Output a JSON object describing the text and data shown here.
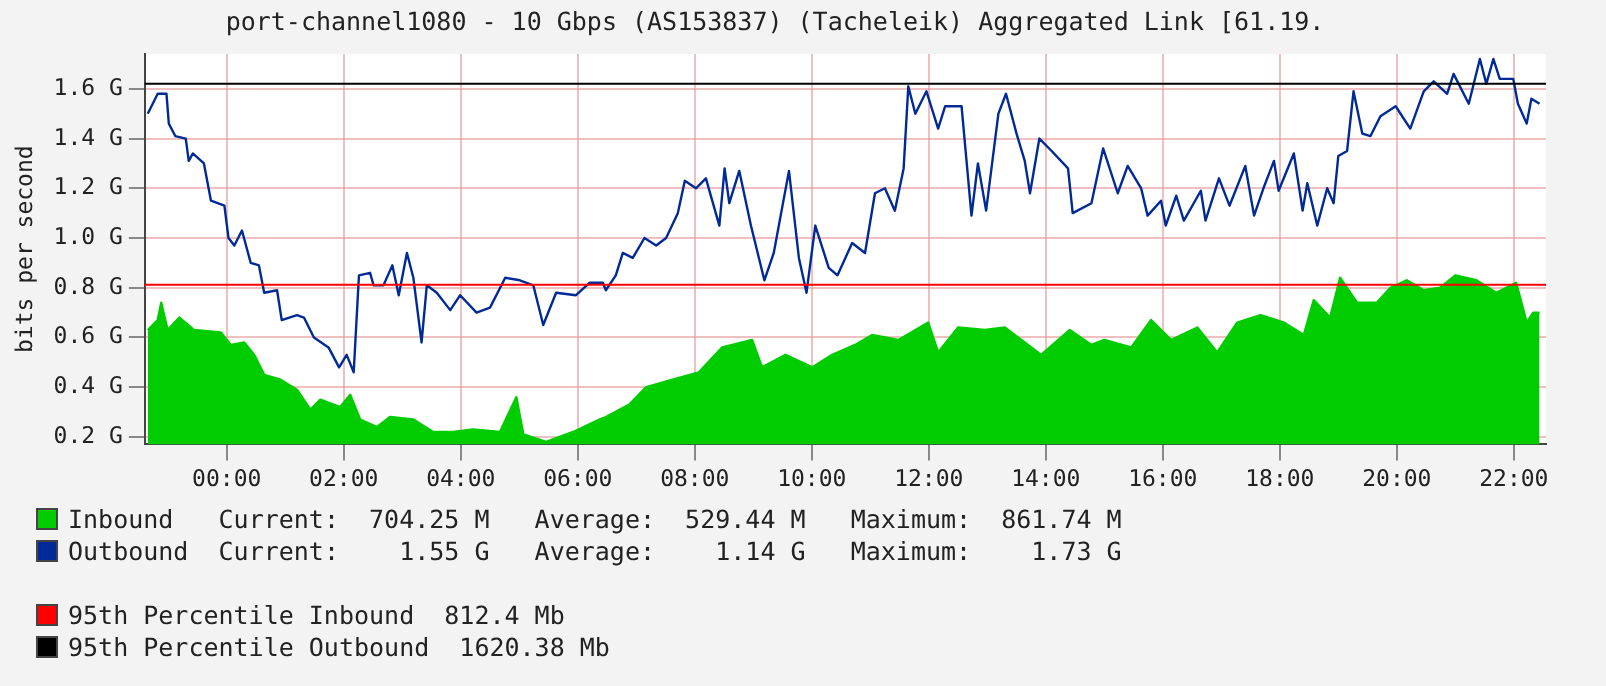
{
  "chart_data": {
    "type": "line",
    "title": "port-channel1080 - 10 Gbps (AS153837) (Tacheleik) Aggregated Link [61.19.",
    "ylabel": "bits per second",
    "xlim": [
      -1.4,
      22.55
    ],
    "xticks": [
      {
        "value": 0,
        "label": "00:00"
      },
      {
        "value": 2,
        "label": "02:00"
      },
      {
        "value": 4,
        "label": "04:00"
      },
      {
        "value": 6,
        "label": "06:00"
      },
      {
        "value": 8,
        "label": "08:00"
      },
      {
        "value": 10,
        "label": "10:00"
      },
      {
        "value": 12,
        "label": "12:00"
      },
      {
        "value": 14,
        "label": "14:00"
      },
      {
        "value": 16,
        "label": "16:00"
      },
      {
        "value": 18,
        "label": "18:00"
      },
      {
        "value": 20,
        "label": "20:00"
      },
      {
        "value": 22,
        "label": "22:00"
      }
    ],
    "ylim": [
      0.17,
      1.74
    ],
    "yticks": [
      {
        "value": 0.2,
        "label": "0.2 G"
      },
      {
        "value": 0.4,
        "label": "0.4 G"
      },
      {
        "value": 0.6,
        "label": "0.6 G"
      },
      {
        "value": 0.8,
        "label": "0.8 G"
      },
      {
        "value": 1.0,
        "label": "1.0 G"
      },
      {
        "value": 1.2,
        "label": "1.2 G"
      },
      {
        "value": 1.4,
        "label": "1.4 G"
      },
      {
        "value": 1.6,
        "label": "1.6 G"
      }
    ],
    "grid": true,
    "legend": "bottom",
    "marker": "none",
    "series": [
      {
        "name": "Inbound",
        "type": "area",
        "color": "#00cc00",
        "x": [
          -1.35,
          -1.18,
          -1.12,
          -1.01,
          -0.81,
          -0.56,
          -0.1,
          0.07,
          0.3,
          0.47,
          0.64,
          0.92,
          1.2,
          1.43,
          1.6,
          1.94,
          2.11,
          2.28,
          2.57,
          2.79,
          3.19,
          3.53,
          3.87,
          4.21,
          4.67,
          4.95,
          5.07,
          5.46,
          5.92,
          6.37,
          6.48,
          6.88,
          7.17,
          7.62,
          8.07,
          8.47,
          8.98,
          9.15,
          9.55,
          10.01,
          10.35,
          10.74,
          11.03,
          11.48,
          11.99,
          12.16,
          12.5,
          12.96,
          13.3,
          13.64,
          13.92,
          14.41,
          14.78,
          15.0,
          15.46,
          15.8,
          16.14,
          16.59,
          16.93,
          17.27,
          17.67,
          18.07,
          18.41,
          18.58,
          18.86,
          19.03,
          19.32,
          19.66,
          19.89,
          20.17,
          20.46,
          20.74,
          21.0,
          21.36,
          21.7,
          22.04,
          22.22,
          22.33,
          22.44
        ],
        "values": [
          0.63,
          0.67,
          0.74,
          0.63,
          0.68,
          0.63,
          0.62,
          0.57,
          0.58,
          0.53,
          0.45,
          0.43,
          0.39,
          0.31,
          0.35,
          0.32,
          0.37,
          0.27,
          0.24,
          0.28,
          0.27,
          0.22,
          0.22,
          0.23,
          0.22,
          0.36,
          0.21,
          0.18,
          0.22,
          0.27,
          0.28,
          0.33,
          0.4,
          0.43,
          0.46,
          0.56,
          0.59,
          0.48,
          0.53,
          0.48,
          0.53,
          0.57,
          0.61,
          0.59,
          0.66,
          0.54,
          0.64,
          0.63,
          0.64,
          0.58,
          0.53,
          0.63,
          0.57,
          0.59,
          0.56,
          0.67,
          0.59,
          0.64,
          0.54,
          0.66,
          0.69,
          0.66,
          0.61,
          0.75,
          0.68,
          0.84,
          0.74,
          0.74,
          0.8,
          0.83,
          0.79,
          0.8,
          0.85,
          0.83,
          0.78,
          0.82,
          0.66,
          0.7,
          0.7
        ]
      },
      {
        "name": "Outbound",
        "type": "line",
        "color": "#002a97",
        "x": [
          -1.35,
          -1.18,
          -1.03,
          -0.99,
          -0.88,
          -0.7,
          -0.65,
          -0.58,
          -0.39,
          -0.27,
          -0.04,
          0.03,
          0.13,
          0.26,
          0.41,
          0.55,
          0.64,
          0.86,
          0.94,
          1.2,
          1.32,
          1.49,
          1.74,
          1.92,
          2.05,
          2.17,
          2.26,
          2.45,
          2.51,
          2.68,
          2.83,
          2.94,
          3.08,
          3.19,
          3.33,
          3.42,
          3.59,
          3.82,
          3.99,
          4.27,
          4.5,
          4.76,
          5.01,
          5.24,
          5.41,
          5.63,
          5.97,
          6.2,
          6.43,
          6.48,
          6.65,
          6.77,
          6.94,
          7.14,
          7.34,
          7.51,
          7.71,
          7.83,
          8.02,
          8.19,
          8.42,
          8.51,
          8.59,
          8.76,
          8.96,
          9.19,
          9.35,
          9.61,
          9.78,
          9.91,
          10.06,
          10.29,
          10.44,
          10.69,
          10.91,
          11.08,
          11.25,
          11.42,
          11.57,
          11.65,
          11.77,
          11.96,
          12.16,
          12.28,
          12.56,
          12.73,
          12.84,
          12.98,
          13.19,
          13.32,
          13.5,
          13.64,
          13.73,
          13.89,
          14.1,
          14.38,
          14.46,
          14.78,
          14.98,
          15.23,
          15.4,
          15.63,
          15.74,
          15.97,
          16.05,
          16.23,
          16.36,
          16.65,
          16.73,
          16.96,
          17.14,
          17.41,
          17.56,
          17.72,
          17.9,
          17.98,
          18.24,
          18.39,
          18.47,
          18.64,
          18.81,
          18.92,
          19.0,
          19.15,
          19.26,
          19.41,
          19.55,
          19.72,
          19.98,
          20.23,
          20.46,
          20.63,
          20.86,
          20.97,
          21.23,
          21.42,
          21.53,
          21.65,
          21.76,
          21.99,
          22.07,
          22.22,
          22.3,
          22.44
        ],
        "values": [
          1.5,
          1.58,
          1.58,
          1.46,
          1.41,
          1.4,
          1.31,
          1.34,
          1.3,
          1.15,
          1.13,
          1.0,
          0.97,
          1.03,
          0.9,
          0.89,
          0.78,
          0.79,
          0.67,
          0.69,
          0.68,
          0.6,
          0.56,
          0.48,
          0.53,
          0.46,
          0.85,
          0.86,
          0.81,
          0.81,
          0.89,
          0.77,
          0.94,
          0.84,
          0.58,
          0.81,
          0.78,
          0.71,
          0.77,
          0.7,
          0.72,
          0.84,
          0.83,
          0.81,
          0.65,
          0.78,
          0.77,
          0.82,
          0.82,
          0.79,
          0.85,
          0.94,
          0.92,
          1.0,
          0.97,
          1.0,
          1.1,
          1.23,
          1.2,
          1.24,
          1.05,
          1.28,
          1.14,
          1.27,
          1.05,
          0.83,
          0.94,
          1.27,
          0.92,
          0.78,
          1.05,
          0.88,
          0.85,
          0.98,
          0.94,
          1.18,
          1.2,
          1.11,
          1.28,
          1.61,
          1.5,
          1.59,
          1.44,
          1.53,
          1.53,
          1.09,
          1.3,
          1.11,
          1.5,
          1.58,
          1.42,
          1.31,
          1.18,
          1.4,
          1.35,
          1.28,
          1.1,
          1.14,
          1.36,
          1.18,
          1.29,
          1.2,
          1.09,
          1.15,
          1.05,
          1.17,
          1.07,
          1.19,
          1.07,
          1.24,
          1.13,
          1.29,
          1.09,
          1.2,
          1.31,
          1.19,
          1.34,
          1.11,
          1.22,
          1.05,
          1.2,
          1.14,
          1.33,
          1.35,
          1.59,
          1.42,
          1.41,
          1.49,
          1.53,
          1.44,
          1.59,
          1.63,
          1.58,
          1.66,
          1.54,
          1.72,
          1.62,
          1.72,
          1.64,
          1.64,
          1.54,
          1.46,
          1.56,
          1.54
        ]
      }
    ],
    "ref_lines": [
      {
        "axis": "y",
        "value": 0.8124,
        "label": "95th Percentile Inbound  812.4 Mb",
        "color": "#ff0000"
      },
      {
        "axis": "y",
        "value": 1.62038,
        "label": "95th Percentile Outbound  1620.38 Mb",
        "color": "#000000"
      }
    ],
    "annotations": [
      "Current:  704.25 M   Average:  529.44 M   Maximum:  861.74 M",
      "Current:    1.55 G   Average:    1.14 G   Maximum:    1.73 G"
    ]
  }
}
